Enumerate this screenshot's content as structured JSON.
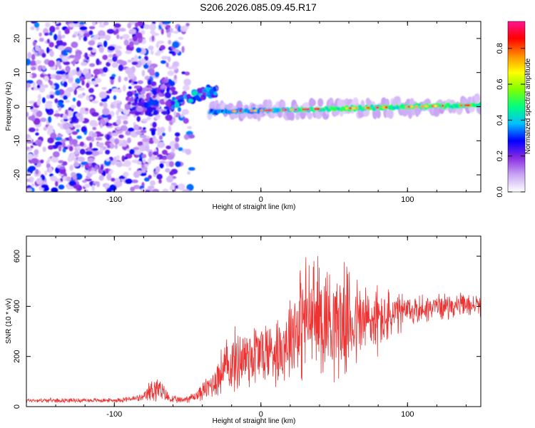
{
  "chart_data": [
    {
      "type": "heatmap",
      "title": "S206.2026.085.09.45.R17",
      "xlabel": "Height of straight line (km)",
      "ylabel": "Frequency (Hz)",
      "xlim": [
        -160,
        150
      ],
      "ylim": [
        -25,
        25
      ],
      "x_ticks": [
        -100,
        0,
        100
      ],
      "y_ticks": [
        -20,
        -10,
        0,
        10,
        20
      ],
      "colorbar": {
        "label": "Normalized spectral amplitude",
        "range": [
          0,
          0.95
        ],
        "ticks": [
          0.0,
          0.2,
          0.4,
          0.6,
          0.8
        ],
        "colors": [
          "#ffffff",
          "#c9a6f5",
          "#8a2be2",
          "#0000ff",
          "#00bfff",
          "#00ff80",
          "#7fff00",
          "#ffff00",
          "#ff8c00",
          "#ff0000",
          "#ff1493"
        ]
      },
      "features": {
        "noise_region_x": [
          -160,
          -55
        ],
        "transition_x": [
          -60,
          -30
        ],
        "transition_freq_hz": [
          1,
          5
        ],
        "signal_line_x": [
          -35,
          150
        ],
        "signal_line_freq_hz": [
          -1.5,
          0.5
        ]
      }
    },
    {
      "type": "line",
      "xlabel": "Height of straight line (km)",
      "ylabel": "SNR (10 * v/v)",
      "xlim": [
        -160,
        150
      ],
      "ylim": [
        0,
        680
      ],
      "x_ticks": [
        -100,
        0,
        100
      ],
      "y_ticks": [
        0,
        200,
        400,
        600
      ],
      "series": [
        {
          "name": "SNR",
          "color": "#ee3333",
          "envelope_x": [
            -160,
            -100,
            -80,
            -73,
            -68,
            -62,
            -55,
            -45,
            -35,
            -25,
            -15,
            -5,
            5,
            15,
            22,
            30,
            40,
            55,
            70,
            85,
            100,
            120,
            150
          ],
          "envelope_mean": [
            25,
            25,
            35,
            75,
            60,
            30,
            25,
            40,
            80,
            150,
            190,
            210,
            220,
            240,
            310,
            350,
            360,
            340,
            340,
            350,
            380,
            400,
            405
          ],
          "envelope_amp": [
            10,
            10,
            18,
            80,
            50,
            20,
            15,
            25,
            60,
            130,
            160,
            170,
            160,
            170,
            230,
            300,
            280,
            260,
            210,
            140,
            80,
            60,
            50
          ]
        }
      ]
    }
  ]
}
